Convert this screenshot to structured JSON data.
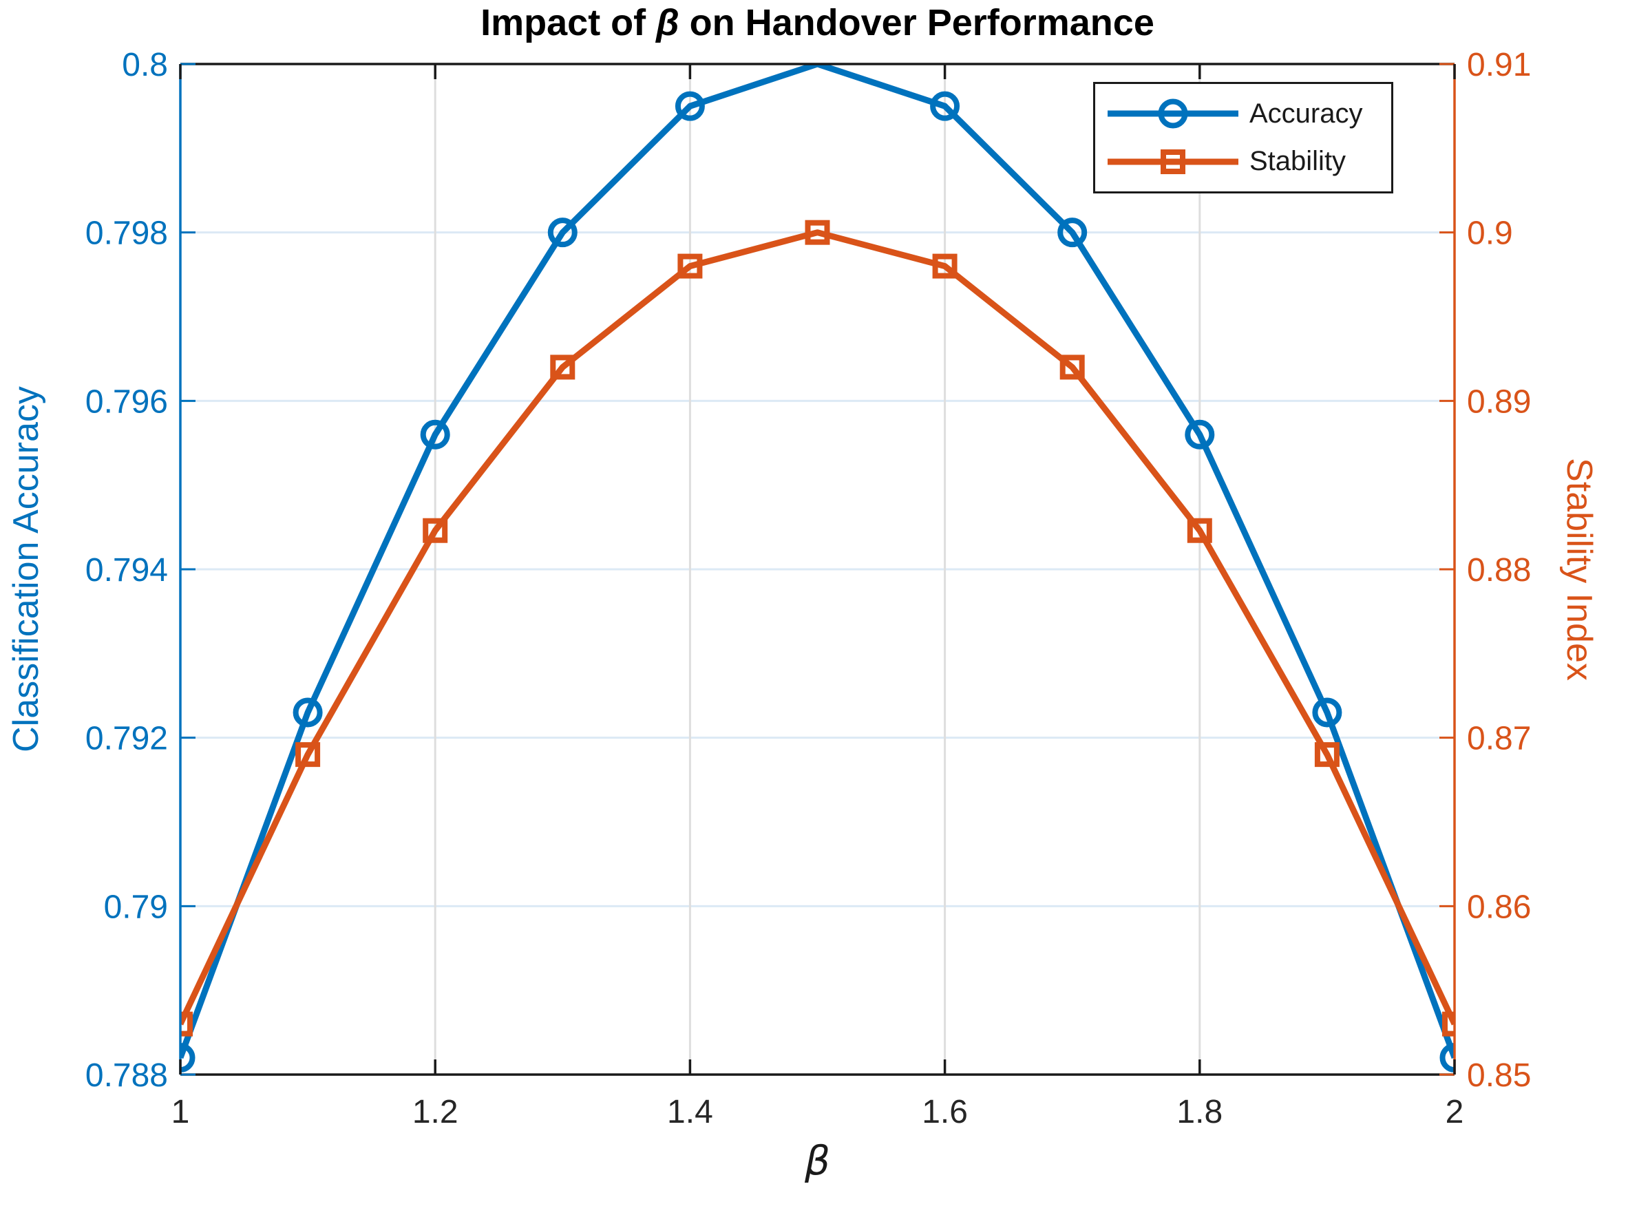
{
  "title": {
    "prefix": "Impact of ",
    "symbol": "β",
    "suffix": " on Handover Performance"
  },
  "chart_data": {
    "type": "line",
    "dual_axis": true,
    "title": "Impact of β on Handover Performance",
    "xlabel": "β",
    "x": [
      1,
      1.1,
      1.2,
      1.3,
      1.4,
      1.5,
      1.6,
      1.7,
      1.8,
      1.9,
      2
    ],
    "x_ticks": {
      "values": [
        1,
        1.2,
        1.4,
        1.6,
        1.8,
        2
      ],
      "labels": [
        "1",
        "1.2",
        "1.4",
        "1.6",
        "1.8",
        "2"
      ]
    },
    "left_axis": {
      "label": "Classification Accuracy",
      "color": "#0072BD",
      "min": 0.788,
      "max": 0.8,
      "tick_values": [
        0.788,
        0.79,
        0.792,
        0.794,
        0.796,
        0.798,
        0.8
      ],
      "tick_labels": [
        "0.788",
        "0.79",
        "0.792",
        "0.794",
        "0.796",
        "0.798",
        "0.8"
      ]
    },
    "right_axis": {
      "label": "Stability Index",
      "color": "#D95319",
      "min": 0.85,
      "max": 0.91,
      "tick_values": [
        0.85,
        0.86,
        0.87,
        0.88,
        0.89,
        0.9,
        0.91
      ],
      "tick_labels": [
        "0.85",
        "0.86",
        "0.87",
        "0.88",
        "0.89",
        "0.9",
        "0.91"
      ]
    },
    "series": [
      {
        "name": "Accuracy",
        "axis": "left",
        "color": "#0072BD",
        "marker": "circle",
        "values": [
          0.7882,
          0.7923,
          0.7956,
          0.798,
          0.7995,
          0.8,
          0.7995,
          0.798,
          0.7956,
          0.7923,
          0.7882
        ]
      },
      {
        "name": "Stability",
        "axis": "right",
        "color": "#D95319",
        "marker": "square",
        "values": [
          0.853,
          0.869,
          0.8823,
          0.892,
          0.898,
          0.9,
          0.898,
          0.892,
          0.8823,
          0.869,
          0.853
        ]
      }
    ],
    "legend": {
      "position": "top-right",
      "entries": [
        "Accuracy",
        "Stability"
      ]
    },
    "grid": true,
    "colors": {
      "x_text": "#262626",
      "grid_x": "#dedede",
      "grid_y": "#dce9f5",
      "frame": "#1a1a1a"
    }
  }
}
